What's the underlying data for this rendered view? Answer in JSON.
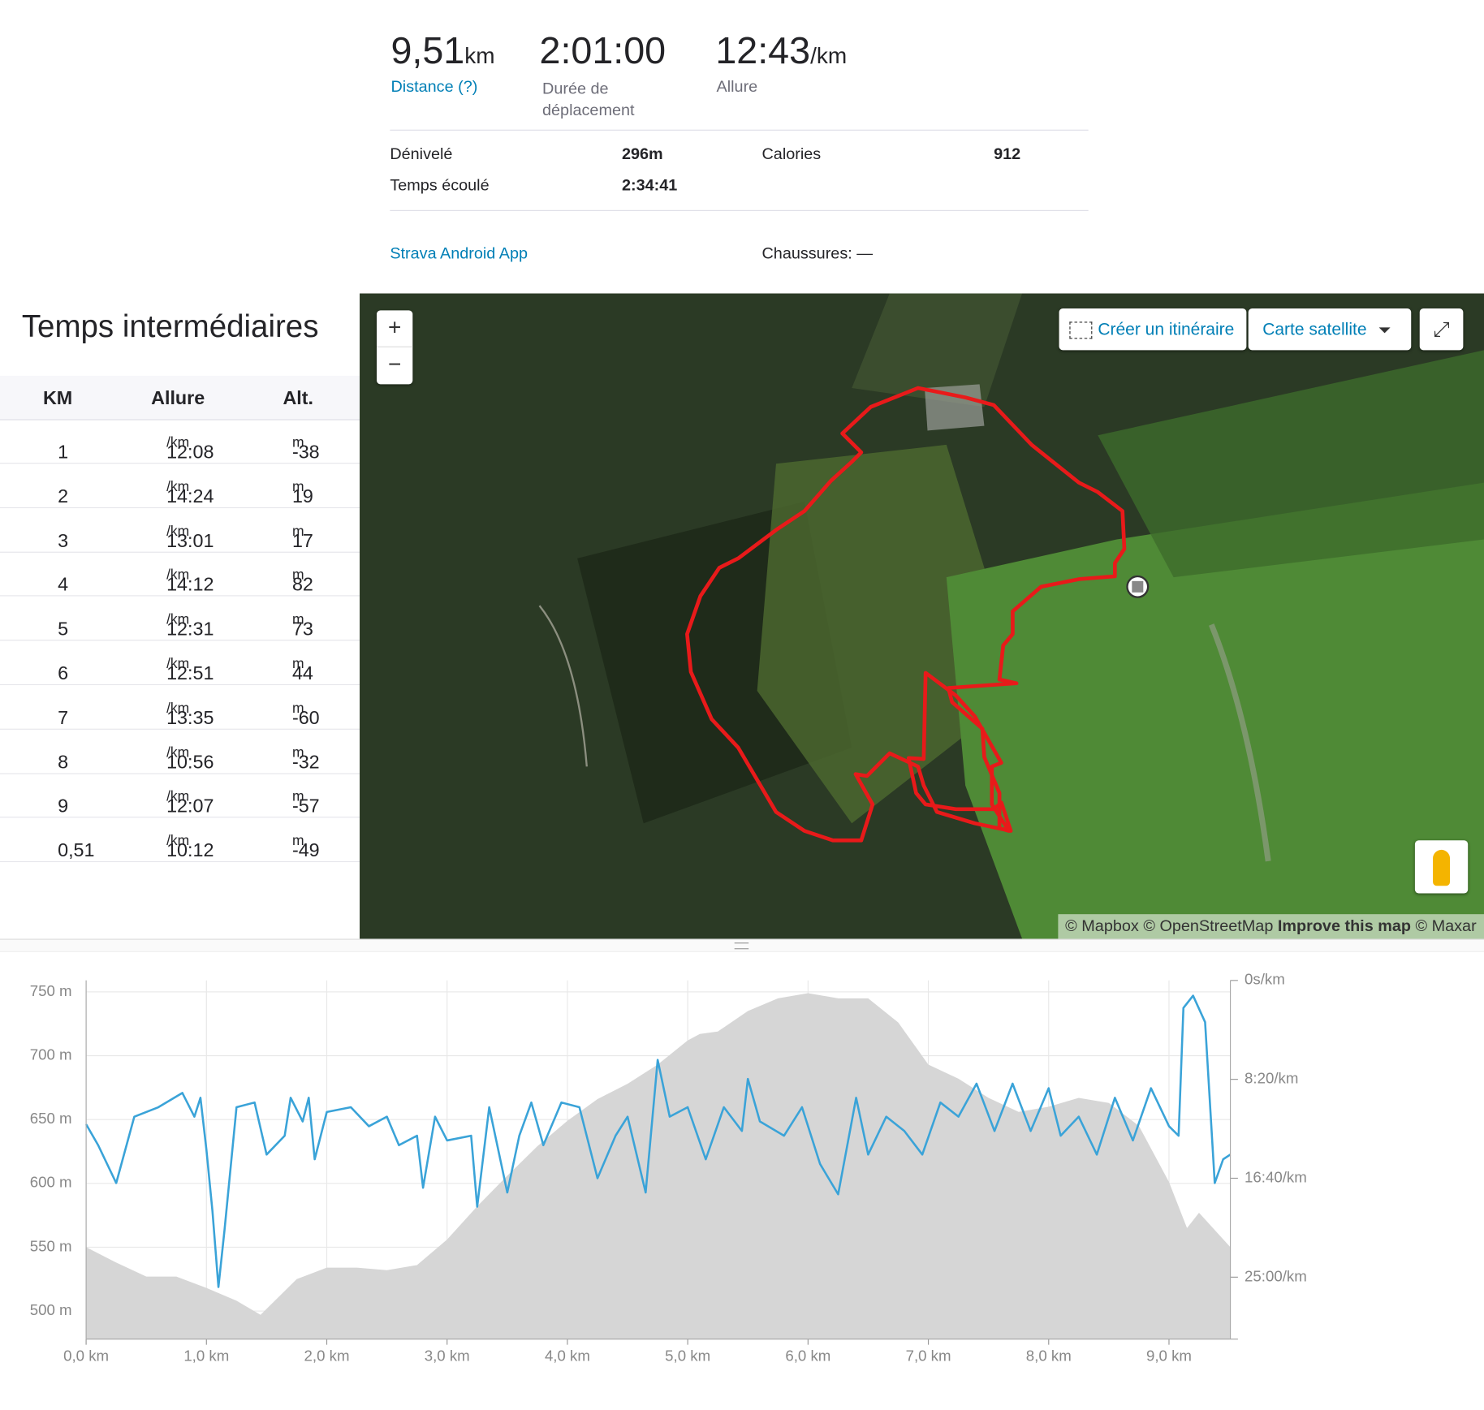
{
  "stats": {
    "distance": {
      "value": "9,51",
      "unit": "km",
      "label": "Distance (?)"
    },
    "duration": {
      "value": "2:01:00",
      "label": "Durée de déplacement"
    },
    "pace": {
      "value": "12:43",
      "unit": "/km",
      "label": "Allure"
    }
  },
  "details": {
    "elevation": {
      "label": "Dénivelé",
      "value": "296m"
    },
    "elapsed": {
      "label": "Temps écoulé",
      "value": "2:34:41"
    },
    "calories": {
      "label": "Calories",
      "value": "912"
    },
    "device": "Strava Android App",
    "shoes": "Chaussures: —"
  },
  "splits": {
    "title": "Temps intermédiaires",
    "headers": [
      "KM",
      "Allure",
      "Alt."
    ],
    "pace_unit": "/km",
    "alt_unit": "m",
    "rows": [
      {
        "km": "1",
        "pace": "12:08",
        "alt": "-38"
      },
      {
        "km": "2",
        "pace": "14:24",
        "alt": "19"
      },
      {
        "km": "3",
        "pace": "13:01",
        "alt": "17"
      },
      {
        "km": "4",
        "pace": "14:12",
        "alt": "82"
      },
      {
        "km": "5",
        "pace": "12:31",
        "alt": "73"
      },
      {
        "km": "6",
        "pace": "12:51",
        "alt": "44"
      },
      {
        "km": "7",
        "pace": "13:35",
        "alt": "-60"
      },
      {
        "km": "8",
        "pace": "10:56",
        "alt": "-32"
      },
      {
        "km": "9",
        "pace": "12:07",
        "alt": "-57"
      },
      {
        "km": "0,51",
        "pace": "10:12",
        "alt": "-49"
      }
    ]
  },
  "map": {
    "zoom_in": "+",
    "zoom_out": "−",
    "create_route": "Créer un itinéraire",
    "layer": "Carte satellite",
    "attribution": {
      "mapbox": "© Mapbox",
      "osm": "© OpenStreetMap",
      "improve": "Improve this map",
      "maxar": "© Maxar"
    }
  },
  "chart_data": {
    "type": "line",
    "xlim": [
      0,
      9.51
    ],
    "ylim": [
      478,
      759
    ],
    "y2lim": [
      1813,
      0
    ],
    "grid": true,
    "xticks": [
      {
        "value": 0,
        "label": "0,0 km"
      },
      {
        "value": 1,
        "label": "1,0 km"
      },
      {
        "value": 2,
        "label": "2,0 km"
      },
      {
        "value": 3,
        "label": "3,0 km"
      },
      {
        "value": 4,
        "label": "4,0 km"
      },
      {
        "value": 5,
        "label": "5,0 km"
      },
      {
        "value": 6,
        "label": "6,0 km"
      },
      {
        "value": 7,
        "label": "7,0 km"
      },
      {
        "value": 8,
        "label": "8,0 km"
      },
      {
        "value": 9,
        "label": "9,0 km"
      }
    ],
    "yticks": [
      {
        "value": 500,
        "label": "500 m"
      },
      {
        "value": 550,
        "label": "550 m"
      },
      {
        "value": 600,
        "label": "600 m"
      },
      {
        "value": 650,
        "label": "650 m"
      },
      {
        "value": 700,
        "label": "700 m"
      },
      {
        "value": 750,
        "label": "750 m"
      }
    ],
    "y2ticks": [
      {
        "value": 0,
        "label": "0s/km"
      },
      {
        "value": 500,
        "label": "8:20/km"
      },
      {
        "value": 1000,
        "label": "16:40/km"
      },
      {
        "value": 1500,
        "label": "25:00/km"
      }
    ],
    "series": [
      {
        "type": "area",
        "color": "#d6d6d6",
        "x": [
          0,
          0.25,
          0.5,
          0.75,
          1,
          1.25,
          1.45,
          1.75,
          2,
          2.25,
          2.5,
          2.75,
          3,
          3.25,
          3.5,
          3.75,
          4,
          4.25,
          4.5,
          4.75,
          5,
          5.1,
          5.25,
          5.5,
          5.75,
          6,
          6.25,
          6.5,
          6.75,
          7,
          7.25,
          7.5,
          7.75,
          8,
          8.25,
          8.5,
          8.75,
          9,
          9.15,
          9.25,
          9.51
        ],
        "values": [
          550,
          538,
          527,
          527,
          518,
          508,
          497,
          525,
          534,
          534,
          532,
          536,
          556,
          582,
          606,
          629,
          649,
          666,
          678,
          693,
          712,
          717,
          719,
          735,
          745,
          749,
          745,
          745,
          726,
          693,
          682,
          667,
          656,
          660,
          667,
          663,
          645,
          601,
          565,
          577,
          550
        ]
      },
      {
        "type": "line",
        "axis": "y2",
        "color": "#3aa3d8",
        "x": [
          0,
          0.1,
          0.25,
          0.4,
          0.6,
          0.8,
          0.9,
          0.95,
          1,
          1.05,
          1.1,
          1.15,
          1.25,
          1.4,
          1.5,
          1.65,
          1.7,
          1.8,
          1.85,
          1.9,
          2,
          2.2,
          2.35,
          2.5,
          2.6,
          2.75,
          2.8,
          2.9,
          3,
          3.2,
          3.25,
          3.35,
          3.5,
          3.6,
          3.7,
          3.8,
          3.95,
          4.1,
          4.25,
          4.4,
          4.5,
          4.65,
          4.75,
          4.85,
          5,
          5.15,
          5.3,
          5.45,
          5.5,
          5.6,
          5.8,
          5.95,
          6.1,
          6.25,
          6.4,
          6.5,
          6.65,
          6.8,
          6.95,
          7.1,
          7.25,
          7.4,
          7.55,
          7.7,
          7.85,
          8,
          8.1,
          8.25,
          8.4,
          8.55,
          8.7,
          8.85,
          9,
          9.08,
          9.12,
          9.2,
          9.3,
          9.38,
          9.45,
          9.51
        ],
        "values": [
          727,
          833,
          1024,
          689,
          641,
          569,
          689,
          593,
          856,
          1167,
          1550,
          1263,
          641,
          617,
          880,
          785,
          593,
          713,
          593,
          904,
          665,
          641,
          737,
          689,
          833,
          785,
          1048,
          689,
          809,
          785,
          1144,
          641,
          1072,
          785,
          617,
          833,
          617,
          641,
          1000,
          785,
          689,
          1072,
          402,
          689,
          641,
          904,
          641,
          761,
          498,
          713,
          785,
          641,
          928,
          1081,
          593,
          880,
          689,
          761,
          880,
          617,
          689,
          522,
          761,
          522,
          761,
          545,
          785,
          689,
          880,
          593,
          809,
          545,
          737,
          785,
          139,
          77,
          211,
          1024,
          904,
          880
        ]
      }
    ]
  }
}
